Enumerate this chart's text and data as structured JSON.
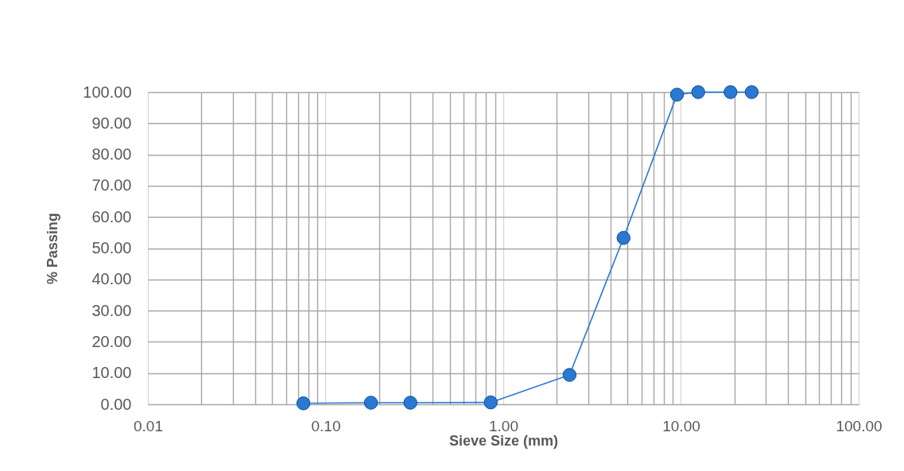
{
  "chart_data": {
    "type": "line",
    "xlabel": "Sieve Size (mm)",
    "ylabel": "% Passing",
    "x": [
      0.075,
      0.18,
      0.3,
      0.85,
      2.36,
      4.75,
      9.5,
      12.5,
      19,
      25
    ],
    "series": [
      {
        "color": "#2a78d2",
        "values": [
          0.3,
          0.5,
          0.5,
          0.6,
          9.4,
          53.3,
          99.2,
          100,
          100,
          100
        ]
      }
    ],
    "log": "x",
    "xlim": [
      0.01,
      100
    ],
    "xticks": [
      {
        "value": 0.01,
        "label": "0.01"
      },
      {
        "value": 0.02,
        "label": null
      },
      {
        "value": 0.03,
        "label": null
      },
      {
        "value": 0.04,
        "label": null
      },
      {
        "value": 0.05,
        "label": null
      },
      {
        "value": 0.06,
        "label": null
      },
      {
        "value": 0.07,
        "label": null
      },
      {
        "value": 0.08,
        "label": null
      },
      {
        "value": 0.09,
        "label": null
      },
      {
        "value": 0.1,
        "label": "0.10"
      },
      {
        "value": 0.2,
        "label": null
      },
      {
        "value": 0.3,
        "label": null
      },
      {
        "value": 0.4,
        "label": null
      },
      {
        "value": 0.5,
        "label": null
      },
      {
        "value": 0.6,
        "label": null
      },
      {
        "value": 0.7,
        "label": null
      },
      {
        "value": 0.8,
        "label": null
      },
      {
        "value": 0.9,
        "label": null
      },
      {
        "value": 1,
        "label": "1.00"
      },
      {
        "value": 2,
        "label": null
      },
      {
        "value": 3,
        "label": null
      },
      {
        "value": 4,
        "label": null
      },
      {
        "value": 5,
        "label": null
      },
      {
        "value": 6,
        "label": null
      },
      {
        "value": 7,
        "label": null
      },
      {
        "value": 8,
        "label": null
      },
      {
        "value": 9,
        "label": null
      },
      {
        "value": 10,
        "label": "10.00"
      },
      {
        "value": 20,
        "label": null
      },
      {
        "value": 30,
        "label": null
      },
      {
        "value": 40,
        "label": null
      },
      {
        "value": 50,
        "label": null
      },
      {
        "value": 60,
        "label": null
      },
      {
        "value": 70,
        "label": null
      },
      {
        "value": 80,
        "label": null
      },
      {
        "value": 90,
        "label": null
      },
      {
        "value": 100,
        "label": "100.00"
      }
    ],
    "ylim": [
      0,
      100
    ],
    "yticks": [
      {
        "value": 0,
        "label": "0.00"
      },
      {
        "value": 10,
        "label": "10.00"
      },
      {
        "value": 20,
        "label": "20.00"
      },
      {
        "value": 30,
        "label": "30.00"
      },
      {
        "value": 40,
        "label": "40.00"
      },
      {
        "value": 50,
        "label": "50.00"
      },
      {
        "value": 60,
        "label": "60.00"
      },
      {
        "value": 70,
        "label": "70.00"
      },
      {
        "value": 80,
        "label": "80.00"
      },
      {
        "value": 90,
        "label": "90.00"
      },
      {
        "value": 100,
        "label": "100.00"
      }
    ],
    "grid": true,
    "marker": "circle",
    "line_style": "solid"
  }
}
